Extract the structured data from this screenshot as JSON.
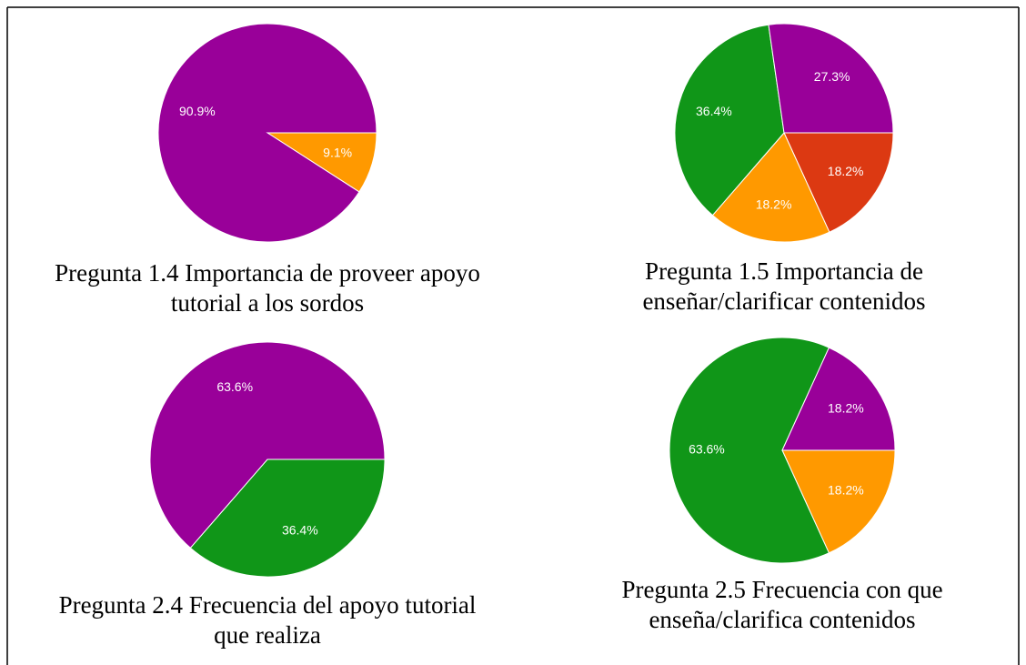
{
  "chart_data": [
    {
      "type": "pie",
      "title": "Pregunta 1.4 Importancia de proveer apoyo tutorial a los sordos",
      "values": [
        9.1,
        90.9
      ],
      "value_labels": [
        "9.1%",
        "90.9%"
      ],
      "colors": [
        "#ff9900",
        "#990099"
      ]
    },
    {
      "type": "pie",
      "title": "Pregunta 1.5 Importancia de enseñar/clarificar contenidos",
      "values": [
        18.2,
        18.2,
        36.4,
        27.3
      ],
      "value_labels": [
        "18.2%",
        "18.2%",
        "36.4%",
        "27.3%"
      ],
      "colors": [
        "#dc3912",
        "#ff9900",
        "#109618",
        "#990099"
      ]
    },
    {
      "type": "pie",
      "title": "Pregunta 2.4 Frecuencia del apoyo tutorial que realiza",
      "values": [
        36.4,
        63.6
      ],
      "value_labels": [
        "36.4%",
        "63.6%"
      ],
      "colors": [
        "#109618",
        "#990099"
      ]
    },
    {
      "type": "pie",
      "title": "Pregunta 2.5 Frecuencia con que enseña/clarifica contenidos",
      "values": [
        18.2,
        63.6,
        18.2
      ],
      "value_labels": [
        "18.2%",
        "63.6%",
        "18.2%"
      ],
      "colors": [
        "#ff9900",
        "#109618",
        "#990099"
      ]
    }
  ]
}
